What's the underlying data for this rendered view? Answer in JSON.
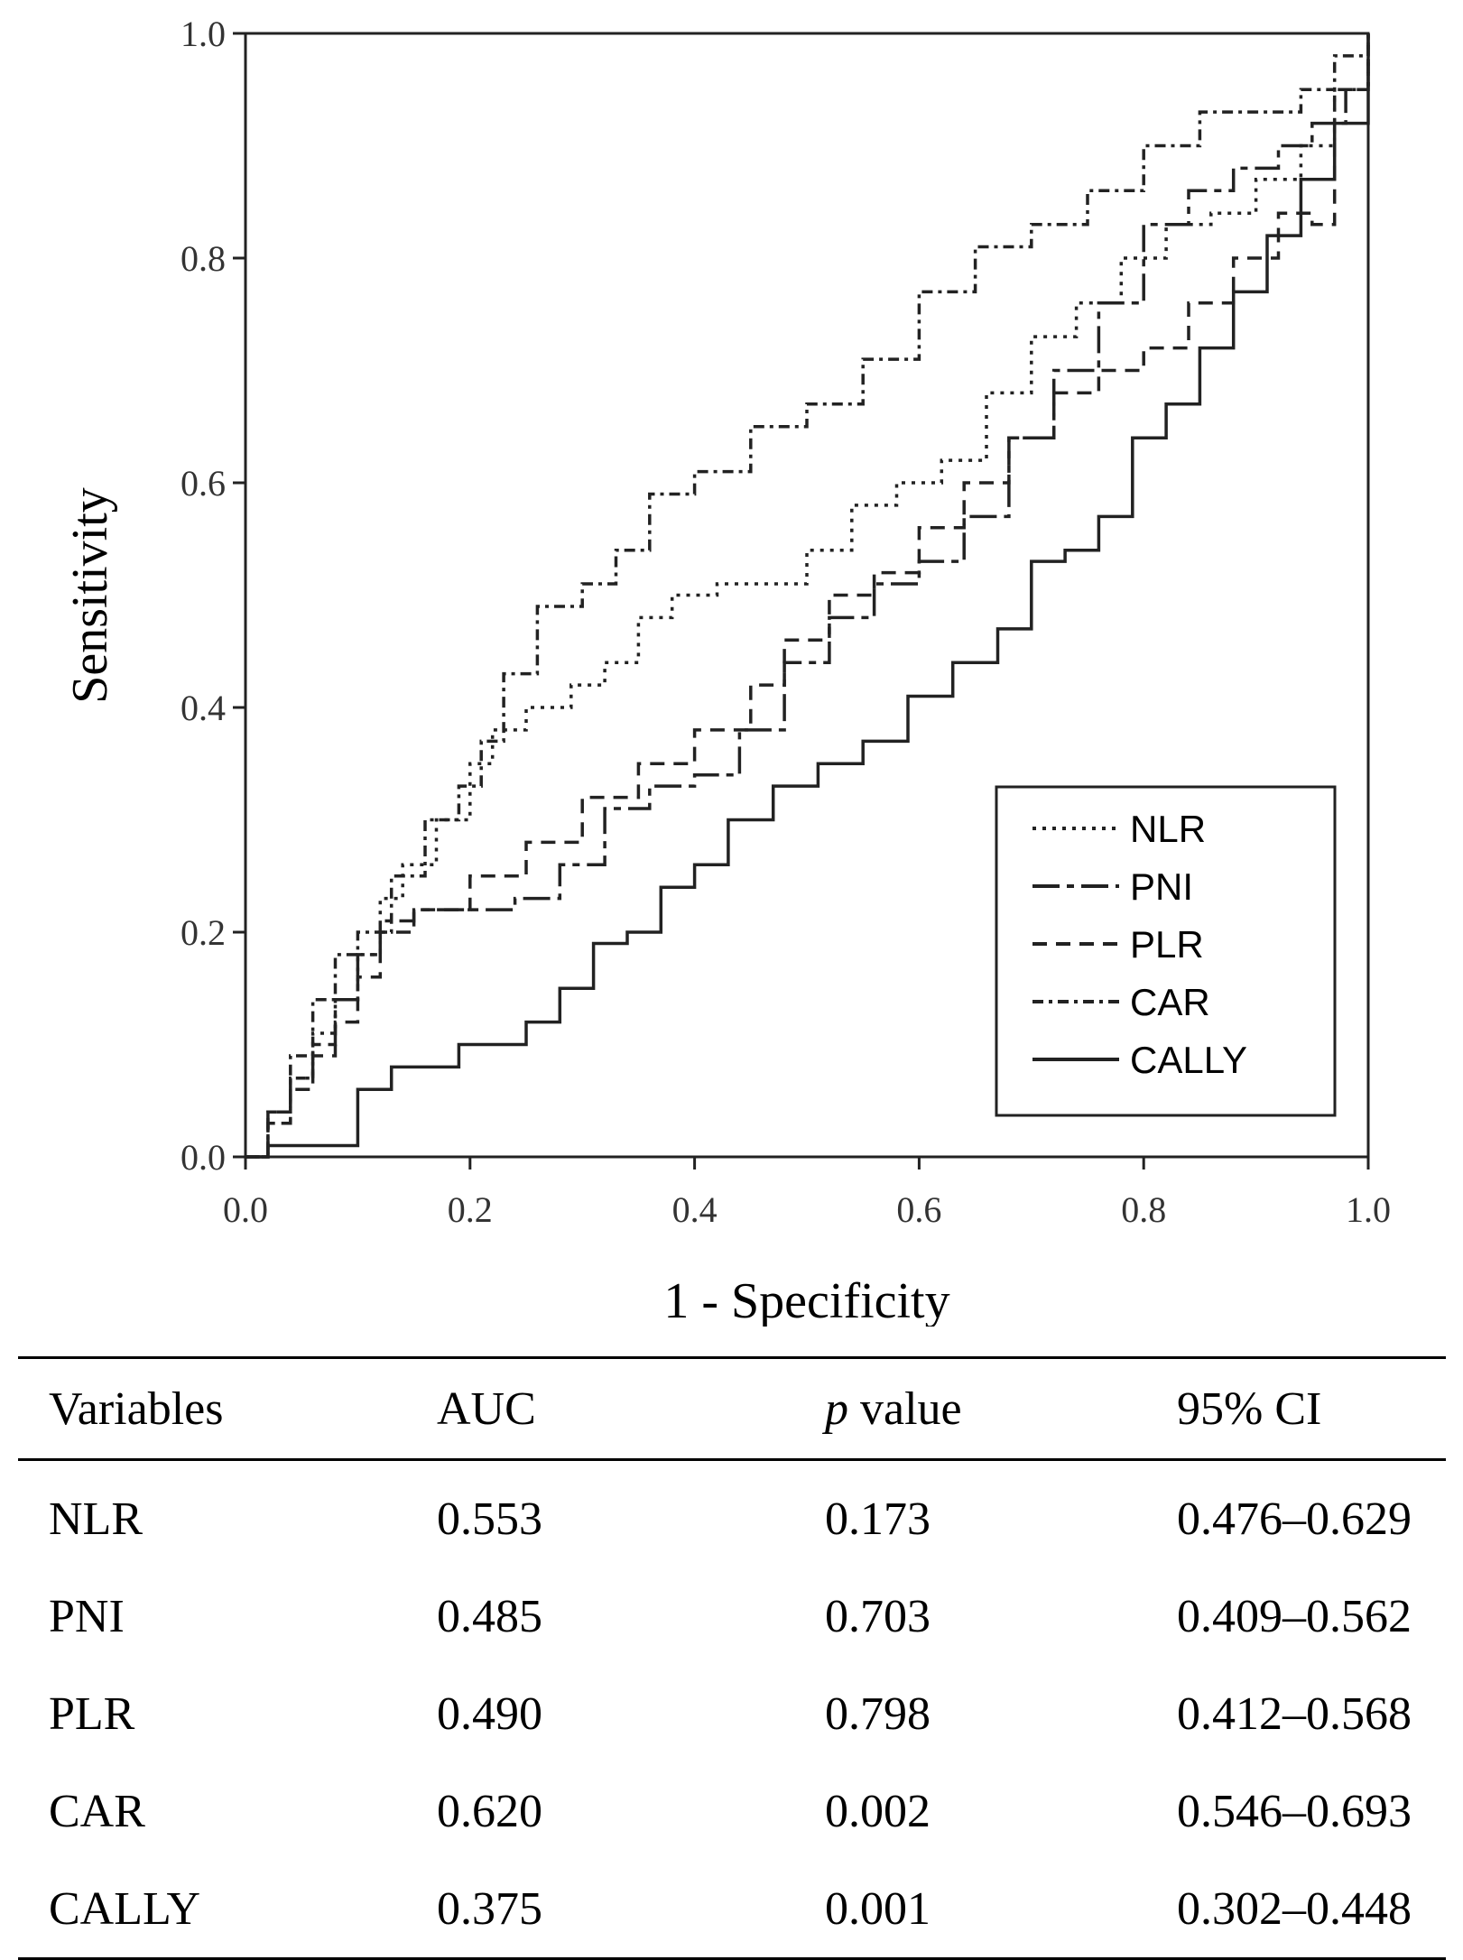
{
  "chart_data": {
    "type": "line",
    "title": "",
    "xlabel": "1 - Specificity",
    "ylabel": "Sensitivity",
    "xlim": [
      0,
      1
    ],
    "ylim": [
      0,
      1
    ],
    "xticks": [
      "0.0",
      "0.2",
      "0.4",
      "0.6",
      "0.8",
      "1.0"
    ],
    "yticks": [
      "0.0",
      "0.2",
      "0.4",
      "0.6",
      "0.8",
      "1.0"
    ],
    "grid": false,
    "legend_position": "lower-right",
    "series": [
      {
        "name": "NLR",
        "dash": "dotted",
        "points": [
          [
            0,
            0
          ],
          [
            0.02,
            0.03
          ],
          [
            0.04,
            0.07
          ],
          [
            0.06,
            0.11
          ],
          [
            0.08,
            0.14
          ],
          [
            0.1,
            0.18
          ],
          [
            0.12,
            0.23
          ],
          [
            0.14,
            0.26
          ],
          [
            0.17,
            0.3
          ],
          [
            0.2,
            0.35
          ],
          [
            0.22,
            0.38
          ],
          [
            0.25,
            0.4
          ],
          [
            0.29,
            0.42
          ],
          [
            0.32,
            0.44
          ],
          [
            0.35,
            0.48
          ],
          [
            0.38,
            0.5
          ],
          [
            0.42,
            0.51
          ],
          [
            0.46,
            0.51
          ],
          [
            0.5,
            0.54
          ],
          [
            0.54,
            0.58
          ],
          [
            0.58,
            0.6
          ],
          [
            0.62,
            0.62
          ],
          [
            0.66,
            0.68
          ],
          [
            0.7,
            0.73
          ],
          [
            0.74,
            0.76
          ],
          [
            0.78,
            0.8
          ],
          [
            0.82,
            0.83
          ],
          [
            0.86,
            0.84
          ],
          [
            0.9,
            0.87
          ],
          [
            0.94,
            0.9
          ],
          [
            0.97,
            0.95
          ],
          [
            1,
            1
          ]
        ]
      },
      {
        "name": "PNI",
        "dash": "long-dash-dot",
        "points": [
          [
            0,
            0
          ],
          [
            0.02,
            0.04
          ],
          [
            0.04,
            0.07
          ],
          [
            0.06,
            0.1
          ],
          [
            0.08,
            0.14
          ],
          [
            0.1,
            0.18
          ],
          [
            0.12,
            0.21
          ],
          [
            0.15,
            0.22
          ],
          [
            0.2,
            0.22
          ],
          [
            0.24,
            0.23
          ],
          [
            0.28,
            0.26
          ],
          [
            0.32,
            0.31
          ],
          [
            0.36,
            0.33
          ],
          [
            0.4,
            0.34
          ],
          [
            0.44,
            0.38
          ],
          [
            0.48,
            0.44
          ],
          [
            0.52,
            0.48
          ],
          [
            0.56,
            0.51
          ],
          [
            0.6,
            0.53
          ],
          [
            0.64,
            0.57
          ],
          [
            0.68,
            0.64
          ],
          [
            0.72,
            0.7
          ],
          [
            0.76,
            0.76
          ],
          [
            0.8,
            0.83
          ],
          [
            0.84,
            0.86
          ],
          [
            0.88,
            0.88
          ],
          [
            0.92,
            0.9
          ],
          [
            0.95,
            0.92
          ],
          [
            0.98,
            0.95
          ],
          [
            1,
            1
          ]
        ]
      },
      {
        "name": "PLR",
        "dash": "dashed",
        "points": [
          [
            0,
            0
          ],
          [
            0.02,
            0.03
          ],
          [
            0.04,
            0.06
          ],
          [
            0.06,
            0.09
          ],
          [
            0.08,
            0.12
          ],
          [
            0.1,
            0.16
          ],
          [
            0.12,
            0.2
          ],
          [
            0.15,
            0.22
          ],
          [
            0.2,
            0.25
          ],
          [
            0.25,
            0.28
          ],
          [
            0.3,
            0.32
          ],
          [
            0.35,
            0.35
          ],
          [
            0.4,
            0.38
          ],
          [
            0.45,
            0.42
          ],
          [
            0.48,
            0.46
          ],
          [
            0.52,
            0.5
          ],
          [
            0.56,
            0.52
          ],
          [
            0.6,
            0.56
          ],
          [
            0.64,
            0.6
          ],
          [
            0.68,
            0.64
          ],
          [
            0.72,
            0.68
          ],
          [
            0.76,
            0.7
          ],
          [
            0.8,
            0.72
          ],
          [
            0.84,
            0.76
          ],
          [
            0.88,
            0.8
          ],
          [
            0.92,
            0.84
          ],
          [
            0.95,
            0.83
          ],
          [
            0.97,
            0.95
          ],
          [
            1,
            1
          ]
        ]
      },
      {
        "name": "CAR",
        "dash": "short-dash-dot",
        "points": [
          [
            0,
            0
          ],
          [
            0.02,
            0.04
          ],
          [
            0.04,
            0.09
          ],
          [
            0.06,
            0.14
          ],
          [
            0.08,
            0.18
          ],
          [
            0.1,
            0.2
          ],
          [
            0.13,
            0.25
          ],
          [
            0.16,
            0.3
          ],
          [
            0.19,
            0.33
          ],
          [
            0.21,
            0.37
          ],
          [
            0.23,
            0.43
          ],
          [
            0.26,
            0.49
          ],
          [
            0.3,
            0.51
          ],
          [
            0.33,
            0.54
          ],
          [
            0.36,
            0.59
          ],
          [
            0.4,
            0.61
          ],
          [
            0.45,
            0.65
          ],
          [
            0.5,
            0.67
          ],
          [
            0.55,
            0.71
          ],
          [
            0.6,
            0.77
          ],
          [
            0.65,
            0.81
          ],
          [
            0.7,
            0.83
          ],
          [
            0.75,
            0.86
          ],
          [
            0.8,
            0.9
          ],
          [
            0.85,
            0.93
          ],
          [
            0.9,
            0.93
          ],
          [
            0.94,
            0.95
          ],
          [
            0.97,
            0.98
          ],
          [
            1,
            1
          ]
        ]
      },
      {
        "name": "CALLY",
        "dash": "solid",
        "points": [
          [
            0,
            0
          ],
          [
            0.02,
            0.01
          ],
          [
            0.05,
            0.01
          ],
          [
            0.08,
            0.01
          ],
          [
            0.1,
            0.06
          ],
          [
            0.13,
            0.08
          ],
          [
            0.16,
            0.08
          ],
          [
            0.19,
            0.1
          ],
          [
            0.22,
            0.1
          ],
          [
            0.25,
            0.12
          ],
          [
            0.28,
            0.15
          ],
          [
            0.31,
            0.19
          ],
          [
            0.34,
            0.2
          ],
          [
            0.37,
            0.24
          ],
          [
            0.4,
            0.26
          ],
          [
            0.43,
            0.3
          ],
          [
            0.47,
            0.33
          ],
          [
            0.51,
            0.35
          ],
          [
            0.55,
            0.37
          ],
          [
            0.59,
            0.41
          ],
          [
            0.63,
            0.44
          ],
          [
            0.67,
            0.47
          ],
          [
            0.7,
            0.53
          ],
          [
            0.73,
            0.54
          ],
          [
            0.76,
            0.57
          ],
          [
            0.79,
            0.64
          ],
          [
            0.82,
            0.67
          ],
          [
            0.85,
            0.72
          ],
          [
            0.88,
            0.77
          ],
          [
            0.91,
            0.82
          ],
          [
            0.94,
            0.87
          ],
          [
            0.97,
            0.92
          ],
          [
            1,
            1
          ]
        ]
      }
    ]
  },
  "table": {
    "headers": {
      "variables": "Variables",
      "auc": "AUC",
      "p_italic": "p",
      "p_rest": " value",
      "ci": "95% CI"
    },
    "rows": [
      {
        "variable": "NLR",
        "auc": "0.553",
        "p": "0.173",
        "ci": "0.476–0.629"
      },
      {
        "variable": "PNI",
        "auc": "0.485",
        "p": "0.703",
        "ci": "0.409–0.562"
      },
      {
        "variable": "PLR",
        "auc": "0.490",
        "p": "0.798",
        "ci": "0.412–0.568"
      },
      {
        "variable": "CAR",
        "auc": "0.620",
        "p": "0.002",
        "ci": "0.546–0.693"
      },
      {
        "variable": "CALLY",
        "auc": "0.375",
        "p": "0.001",
        "ci": "0.302–0.448"
      }
    ]
  }
}
